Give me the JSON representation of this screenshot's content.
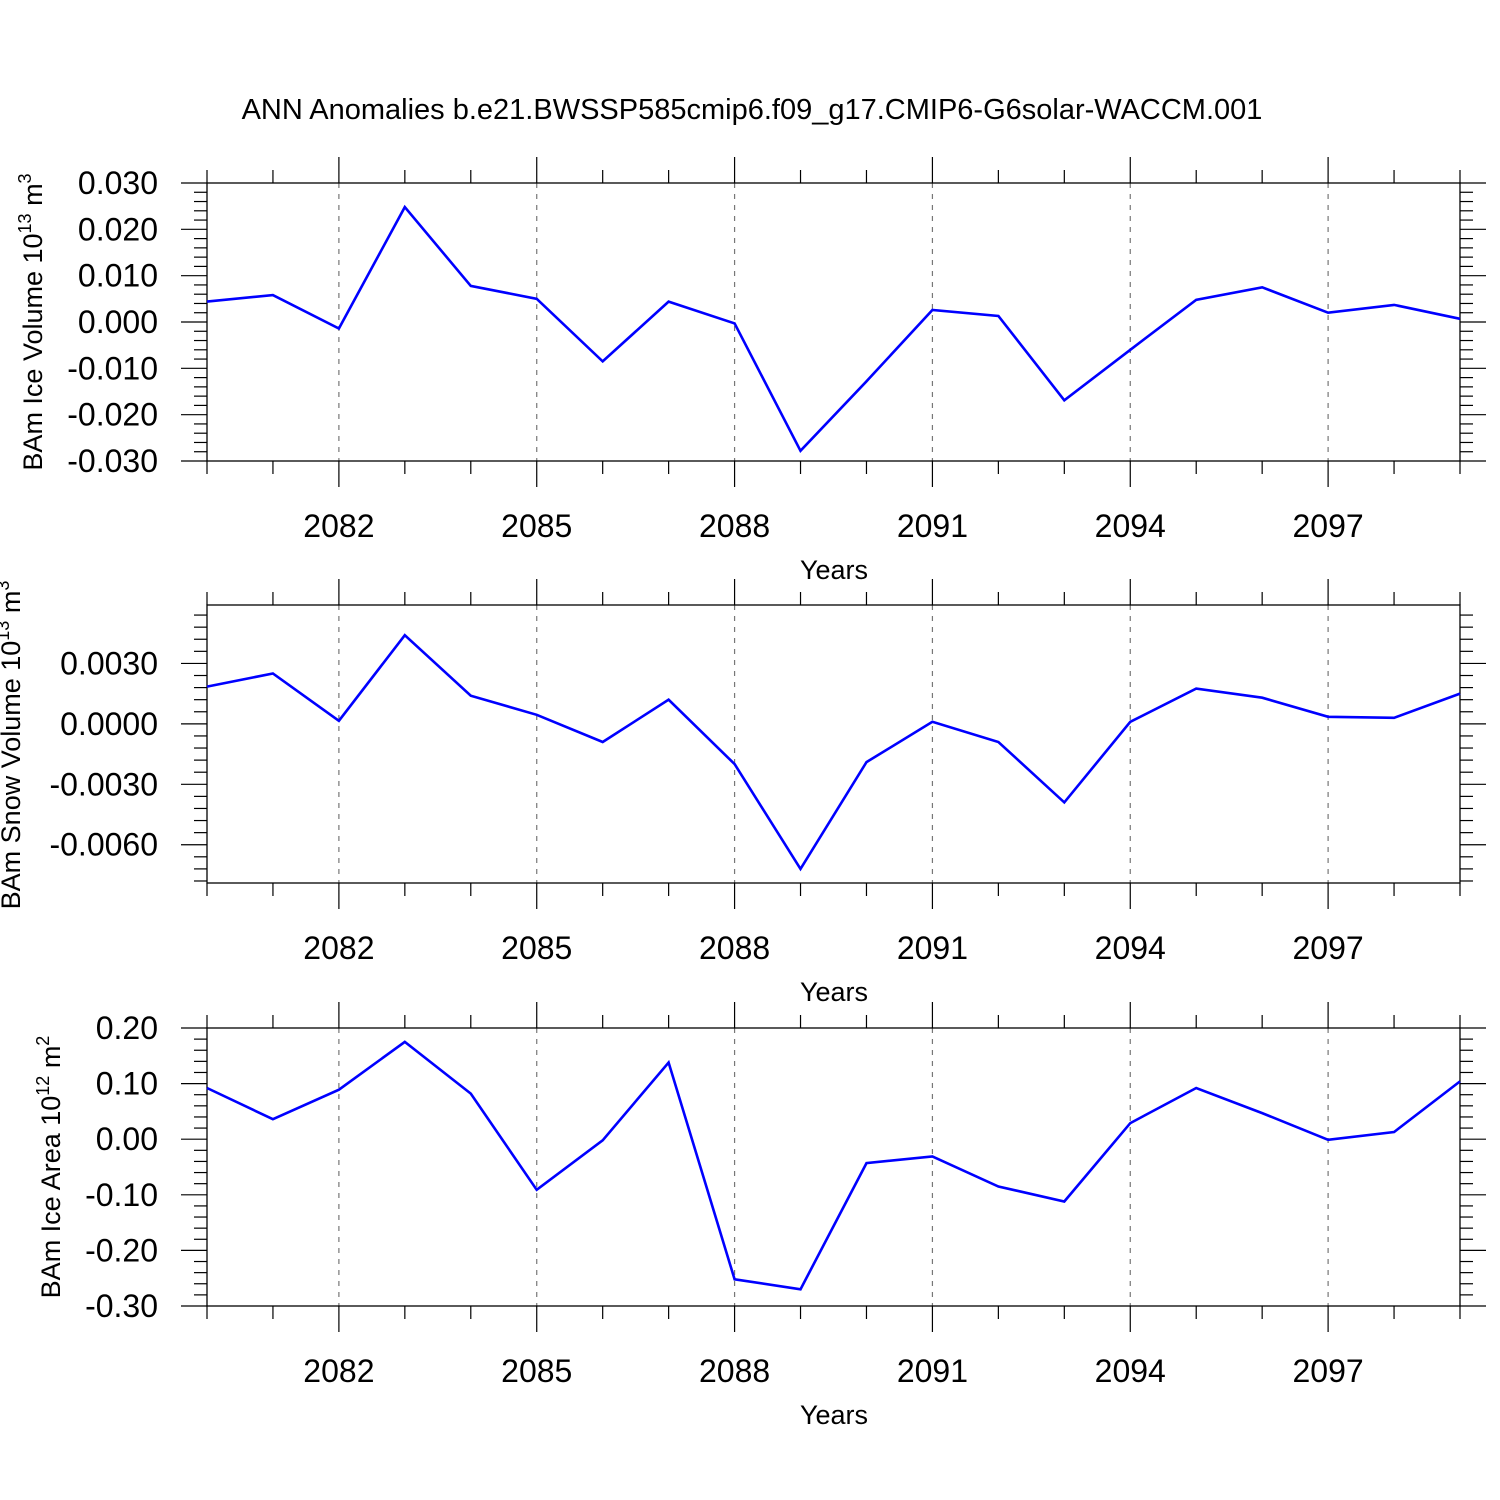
{
  "title": "ANN Anomalies b.e21.BWSSP585cmip6.f09_g17.CMIP6-G6solar-WACCM.001",
  "colors": {
    "line": "#0000ff",
    "frame": "#000000",
    "grid": "#777777"
  },
  "chart_data": [
    {
      "type": "line",
      "ylabel": {
        "main": "BAm Ice Volume 10",
        "sup": "13",
        "unit": " m",
        "unit_sup": "3"
      },
      "xlabel": "Years",
      "xlim": [
        2080,
        2099
      ],
      "xticks": [
        2082,
        2085,
        2088,
        2091,
        2094,
        2097
      ],
      "xtick_labels": [
        "2082",
        "2085",
        "2088",
        "2091",
        "2094",
        "2097"
      ],
      "ylim": [
        -0.03,
        0.03
      ],
      "yticks": [
        -0.03,
        -0.02,
        -0.01,
        0.0,
        0.01,
        0.02,
        0.03
      ],
      "ytick_labels": [
        "-0.030",
        "-0.020",
        "-0.010",
        "0.000",
        "0.010",
        "0.020",
        "0.030"
      ],
      "grid": "dashed vertical at labeled years",
      "x": [
        2080,
        2081,
        2082,
        2083,
        2084,
        2085,
        2086,
        2087,
        2088,
        2089,
        2090,
        2091,
        2092,
        2093,
        2094,
        2095,
        2096,
        2097,
        2098,
        2099
      ],
      "values": [
        0.0044,
        0.0058,
        -0.0014,
        0.0248,
        0.0078,
        0.005,
        -0.0085,
        0.0044,
        -0.0003,
        -0.0278,
        -0.0128,
        0.0026,
        0.0013,
        -0.0169,
        -0.006,
        0.0048,
        0.0075,
        0.002,
        0.0037,
        0.0007
      ]
    },
    {
      "type": "line",
      "ylabel": {
        "main": "BAm Snow Volume 10",
        "sup": "13",
        "unit": " m",
        "unit_sup": "3"
      },
      "xlabel": "Years",
      "xlim": [
        2080,
        2099
      ],
      "xticks": [
        2082,
        2085,
        2088,
        2091,
        2094,
        2097
      ],
      "xtick_labels": [
        "2082",
        "2085",
        "2088",
        "2091",
        "2094",
        "2097"
      ],
      "ylim": [
        -0.0079,
        0.0059
      ],
      "yticks": [
        -0.006,
        -0.003,
        0.0,
        0.003
      ],
      "ytick_labels": [
        "-0.0060",
        "-0.0030",
        "0.0000",
        "0.0030"
      ],
      "grid": "dashed vertical at labeled years",
      "x": [
        2080,
        2081,
        2082,
        2083,
        2084,
        2085,
        2086,
        2087,
        2088,
        2089,
        2090,
        2091,
        2092,
        2093,
        2094,
        2095,
        2096,
        2097,
        2098,
        2099
      ],
      "values": [
        0.00185,
        0.0025,
        0.00015,
        0.0044,
        0.0014,
        0.00045,
        -0.0009,
        0.0012,
        -0.002,
        -0.0072,
        -0.0019,
        0.0001,
        -0.0009,
        -0.0039,
        0.0001,
        0.00175,
        0.0013,
        0.00035,
        0.0003,
        0.0015
      ]
    },
    {
      "type": "line",
      "ylabel": {
        "main": "BAm Ice Area 10",
        "sup": "12",
        "unit": " m",
        "unit_sup": "2"
      },
      "xlabel": "Years",
      "xlim": [
        2080,
        2099
      ],
      "xticks": [
        2082,
        2085,
        2088,
        2091,
        2094,
        2097
      ],
      "xtick_labels": [
        "2082",
        "2085",
        "2088",
        "2091",
        "2094",
        "2097"
      ],
      "ylim": [
        -0.3,
        0.2
      ],
      "yticks": [
        -0.3,
        -0.2,
        -0.1,
        0.0,
        0.1,
        0.2
      ],
      "ytick_labels": [
        "-0.30",
        "-0.20",
        "-0.10",
        "0.00",
        "0.10",
        "0.20"
      ],
      "grid": "dashed vertical at labeled years",
      "x": [
        2080,
        2081,
        2082,
        2083,
        2084,
        2085,
        2086,
        2087,
        2088,
        2089,
        2090,
        2091,
        2092,
        2093,
        2094,
        2095,
        2096,
        2097,
        2098,
        2099
      ],
      "values": [
        0.092,
        0.036,
        0.089,
        0.175,
        0.082,
        -0.091,
        -0.002,
        0.138,
        -0.252,
        -0.27,
        -0.043,
        -0.031,
        -0.085,
        -0.112,
        0.029,
        0.092,
        0.047,
        -0.001,
        0.013,
        0.104
      ]
    }
  ]
}
